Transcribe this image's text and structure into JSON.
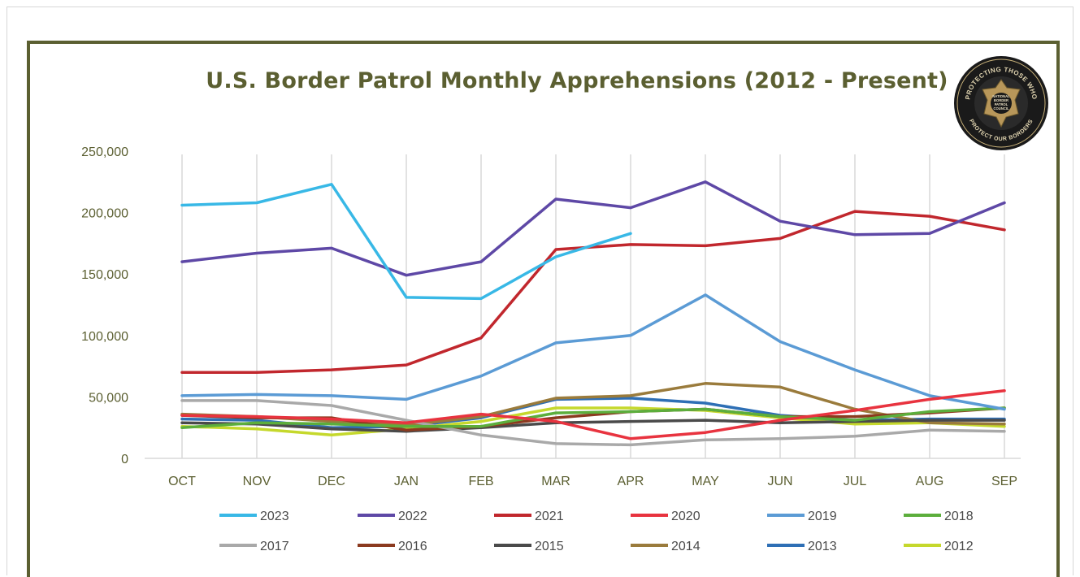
{
  "chart_data": {
    "type": "line",
    "title": "U.S. Border Patrol Monthly Apprehensions (2012 - Present)",
    "xlabel": "",
    "ylabel": "",
    "categories": [
      "OCT",
      "NOV",
      "DEC",
      "JAN",
      "FEB",
      "MAR",
      "APR",
      "MAY",
      "JUN",
      "JUL",
      "AUG",
      "SEP"
    ],
    "ylim": [
      0,
      250000
    ],
    "yticks": [
      0,
      50000,
      100000,
      150000,
      200000,
      250000
    ],
    "ytick_labels": [
      "0",
      "50,000",
      "100,000",
      "150,000",
      "200,000",
      "250,000"
    ],
    "grid": "vertical",
    "legend_position": "bottom",
    "series": [
      {
        "name": "2023",
        "color": "#38b8e6",
        "values": [
          206000,
          208000,
          223000,
          131000,
          130000,
          164000,
          183000,
          null,
          null,
          null,
          null,
          null
        ]
      },
      {
        "name": "2022",
        "color": "#5e48a6",
        "values": [
          160000,
          167000,
          171000,
          149000,
          160000,
          211000,
          204000,
          225000,
          193000,
          182000,
          183000,
          208000
        ]
      },
      {
        "name": "2021",
        "color": "#c1272d",
        "values": [
          70000,
          70000,
          72000,
          76000,
          98000,
          170000,
          174000,
          173000,
          179000,
          201000,
          197000,
          186000
        ]
      },
      {
        "name": "2020",
        "color": "#e8333f",
        "values": [
          35000,
          34000,
          32000,
          29000,
          36000,
          30000,
          16000,
          21000,
          31000,
          39000,
          48000,
          55000
        ]
      },
      {
        "name": "2019",
        "color": "#5b9bd5",
        "values": [
          51000,
          52000,
          51000,
          48000,
          67000,
          94000,
          100000,
          133000,
          95000,
          72000,
          51000,
          40000
        ]
      },
      {
        "name": "2018",
        "color": "#5cae3c",
        "values": [
          25000,
          29000,
          28000,
          26000,
          26000,
          37000,
          38000,
          40000,
          34000,
          31000,
          38000,
          41000
        ]
      },
      {
        "name": "2017",
        "color": "#a9a9a9",
        "values": [
          47000,
          47000,
          43000,
          31000,
          19000,
          12000,
          11000,
          15000,
          16000,
          18000,
          23000,
          22000
        ]
      },
      {
        "name": "2016",
        "color": "#8b3a1f",
        "values": [
          35000,
          33000,
          33000,
          23000,
          26000,
          33000,
          38000,
          40000,
          34000,
          34000,
          37000,
          41000
        ]
      },
      {
        "name": "2015",
        "color": "#4a4a4a",
        "values": [
          29000,
          28000,
          24000,
          22000,
          25000,
          29000,
          30000,
          31000,
          29000,
          30000,
          31000,
          31000
        ]
      },
      {
        "name": "2014",
        "color": "#9a7b3c",
        "values": [
          36000,
          34000,
          30000,
          27000,
          34000,
          49000,
          51000,
          61000,
          58000,
          40000,
          29000,
          28000
        ]
      },
      {
        "name": "2013",
        "color": "#2e6fb5",
        "values": [
          32000,
          31000,
          25000,
          26000,
          33000,
          48000,
          49000,
          45000,
          35000,
          31000,
          32000,
          32000
        ]
      },
      {
        "name": "2012",
        "color": "#c5d82c",
        "values": [
          26000,
          24000,
          19000,
          24000,
          30000,
          41000,
          41000,
          39000,
          33000,
          28000,
          29000,
          26000
        ]
      }
    ]
  },
  "seal": {
    "text_top": "PROTECTING THOSE WHO",
    "text_bottom": "PROTECT OUR BORDERS",
    "center_lines": [
      "NATIONAL",
      "BORDER",
      "PATROL",
      "COUNCIL"
    ]
  }
}
